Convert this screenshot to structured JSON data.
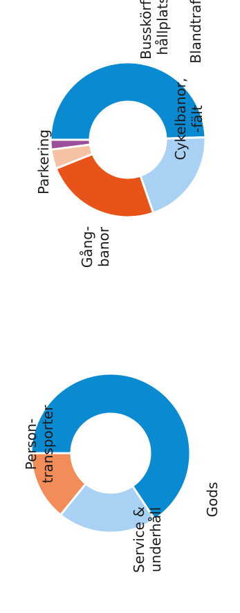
{
  "chart_data": [
    {
      "type": "pie",
      "variant": "donut",
      "title": "",
      "orientation": "rotated 90 degrees counter-clockwise",
      "labels": [
        "Blandtrafik",
        "Parkering",
        "Gång-\nbanor",
        "Cykelbanor,\n-fält",
        "Busskörfält/\nhållplatser"
      ],
      "values": [
        49,
        20,
        24,
        4,
        2
      ],
      "colors": [
        "#0a8bd1",
        "#a9d1f3",
        "#e85417",
        "#f5c3a4",
        "#9b4f9a"
      ]
    },
    {
      "type": "pie",
      "variant": "donut",
      "title": "",
      "orientation": "rotated 90 degrees counter-clockwise",
      "labels": [
        "Person-\ntransporter",
        "Service &\nunderhåll",
        "Gods"
      ],
      "values": [
        65,
        20,
        14
      ],
      "colors": [
        "#0a8bd1",
        "#a9d1f3",
        "#f28c58"
      ]
    }
  ]
}
